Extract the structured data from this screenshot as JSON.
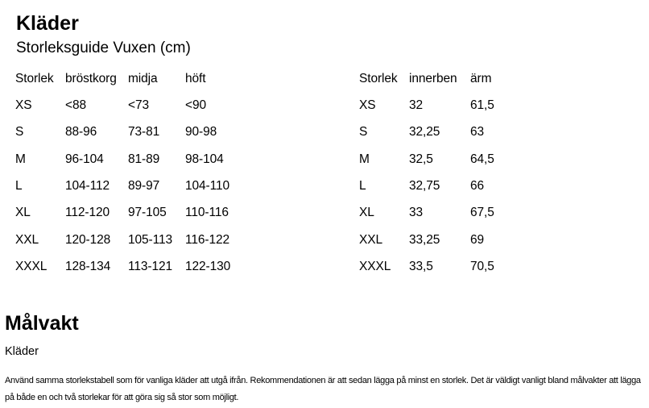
{
  "page": {
    "title": "Kläder",
    "subtitle": "Storleksguide Vuxen (cm)"
  },
  "tables": {
    "measurements": {
      "columns": [
        "Storlek",
        "bröstkorg",
        "midja",
        "höft"
      ],
      "rows": [
        [
          "XS",
          "<88",
          "<73",
          "<90"
        ],
        [
          "S",
          "88-96",
          "73-81",
          "90-98"
        ],
        [
          "M",
          "96-104",
          "81-89",
          "98-104"
        ],
        [
          "L",
          "104-112",
          "89-97",
          "104-110"
        ],
        [
          "XL",
          "112-120",
          "97-105",
          "110-116"
        ],
        [
          "XXL",
          "120-128",
          "105-113",
          "116-122"
        ],
        [
          "XXXL",
          "128-134",
          "113-121",
          "122-130"
        ]
      ]
    },
    "lengths": {
      "columns": [
        "Storlek",
        "innerben",
        "ärm"
      ],
      "rows": [
        [
          "XS",
          "32",
          "61,5"
        ],
        [
          "S",
          "32,25",
          "63"
        ],
        [
          "M",
          "32,5",
          "64,5"
        ],
        [
          "L",
          "32,75",
          "66"
        ],
        [
          "XL",
          "33",
          "67,5"
        ],
        [
          "XXL",
          "33,25",
          "69"
        ],
        [
          "XXXL",
          "33,5",
          "70,5"
        ]
      ]
    }
  },
  "goalkeeper": {
    "title": "Målvakt",
    "subtitle": "Kläder",
    "body_text": "Använd samma storlekstabell som för vanliga kläder att utgå ifrån. Rekommendationen är att sedan lägga på minst en storlek. Det är väldigt vanligt bland målvakter att lägga\npå både en och två storlekar för att göra sig så stor som möjligt."
  },
  "colors": {
    "text": "#000000",
    "background": "#ffffff"
  }
}
